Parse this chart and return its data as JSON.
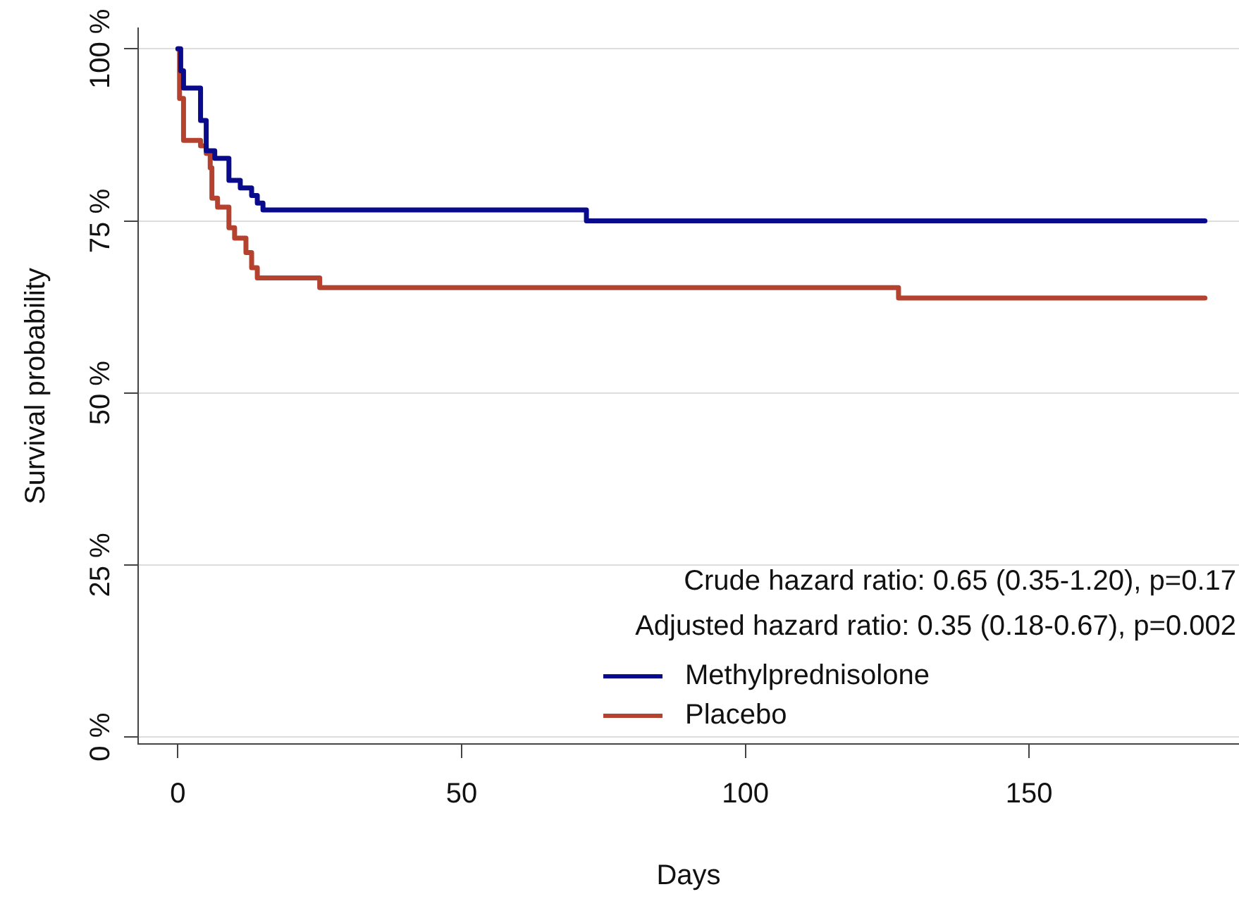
{
  "chart_data": {
    "type": "step",
    "xlabel": "Days",
    "ylabel": "Survival probability",
    "xlim": [
      -7,
      187
    ],
    "xticks": [
      0,
      50,
      100,
      150
    ],
    "ylim": [
      -1,
      103
    ],
    "yticks": [
      {
        "value": 0,
        "label": "0 %"
      },
      {
        "value": 25,
        "label": "25 %"
      },
      {
        "value": 50,
        "label": "50 %"
      },
      {
        "value": 75,
        "label": "75 %"
      },
      {
        "value": 100,
        "label": "100 %"
      }
    ],
    "grid": "y",
    "legend": "bottom right",
    "line_style": "solid",
    "marker": "none",
    "annotations": [
      "Crude hazard ratio: 0.65 (0.35-1.20), p=0.17",
      "Adjusted hazard ratio: 0.35 (0.18-0.67), p=0.002"
    ],
    "series": [
      {
        "name": "Methylprednisolone",
        "color": "#0a0a8c",
        "x": [
          0,
          0.5,
          1,
          4,
          5,
          6.5,
          9,
          11,
          13,
          14,
          15,
          72,
          181
        ],
        "values": [
          100,
          96.8,
          94.3,
          89.6,
          85.2,
          84.1,
          80.9,
          79.8,
          78.7,
          77.6,
          76.6,
          75,
          75
        ]
      },
      {
        "name": "Placebo",
        "color": "#b5412f",
        "x": [
          0,
          0.3,
          1,
          4,
          5,
          5.7,
          6,
          7,
          9,
          10,
          12,
          13,
          14,
          25,
          127,
          181
        ],
        "values": [
          100,
          92.8,
          86.7,
          85.9,
          84.8,
          82.7,
          78.3,
          77,
          74,
          72.5,
          70.4,
          68.2,
          66.7,
          65.3,
          63.8,
          63.8
        ]
      }
    ]
  }
}
